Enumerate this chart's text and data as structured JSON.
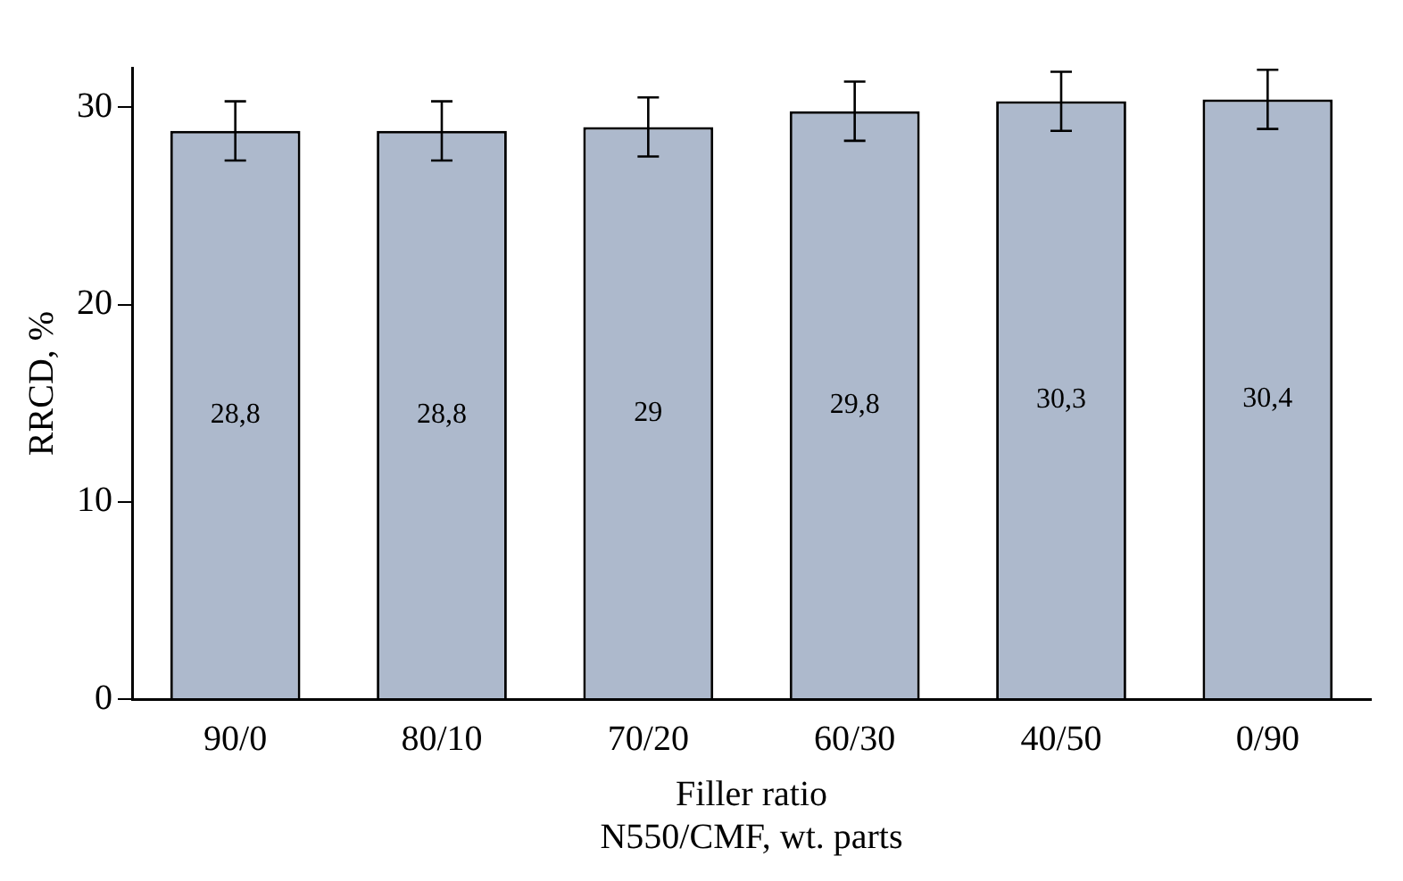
{
  "chart_data": {
    "type": "bar",
    "ylabel": "RRCD, %",
    "xlabel": "Filler ratio\nN550/CMF, wt. parts",
    "categories": [
      "90/0",
      "80/10",
      "70/20",
      "60/30",
      "40/50",
      "0/90"
    ],
    "values": [
      28.8,
      28.8,
      29,
      29.8,
      30.3,
      30.4
    ],
    "errors": [
      1.5,
      1.5,
      1.5,
      1.5,
      1.5,
      1.5
    ],
    "value_labels": [
      "28,8",
      "28,8",
      "29",
      "29,8",
      "30,3",
      "30,4"
    ],
    "color": "#adb9cc",
    "ylim": [
      0,
      32
    ],
    "yticks": [
      0,
      10,
      20,
      30
    ],
    "grid": false,
    "legend": false
  }
}
